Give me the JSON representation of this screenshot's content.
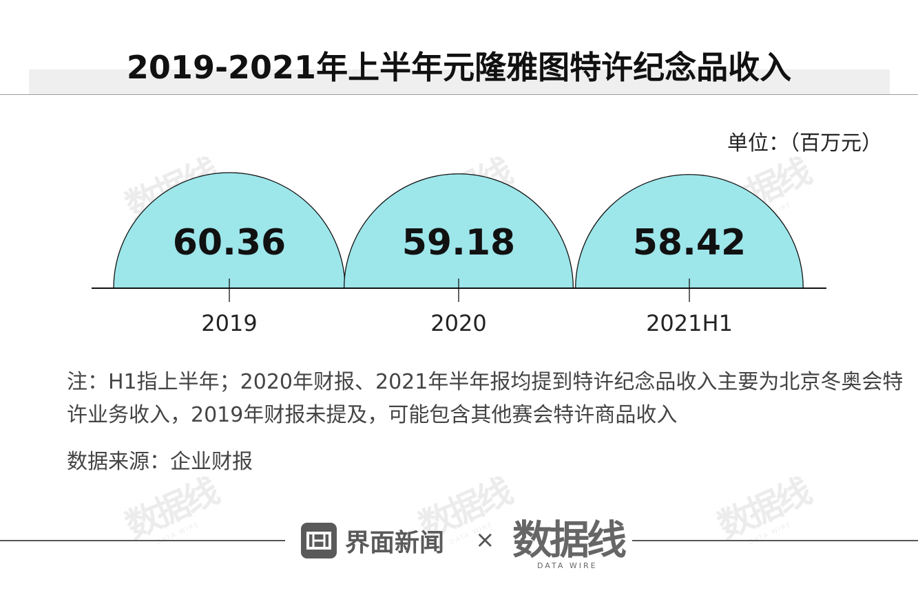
{
  "title": "2019-2021年上半年元隆雅图特许纪念品收入",
  "unit_label": "单位：（百万元）",
  "chart_data": {
    "type": "bar",
    "categories": [
      "2019",
      "2020",
      "2021H1"
    ],
    "values": [
      60.36,
      59.18,
      58.42
    ],
    "value_labels": [
      "60.36",
      "59.18",
      "58.42"
    ],
    "title": "2019-2021年上半年元隆雅图特许纪念品收入",
    "xlabel": "",
    "ylabel": "",
    "unit": "单位：（百万元）",
    "shape": "semicircle",
    "fill_color": "#9de6ea",
    "stroke_color": "#111111",
    "legend": "none",
    "grid": false
  },
  "note": "注：H1指上半年；2020年财报、2021年半年报均提到特许纪念品收入主要为北京冬奥会特许业务收入，2019年财报未提及，可能包含其他赛会特许商品收入",
  "source": "数据来源：企业财报",
  "footer": {
    "brand1": "界面新闻",
    "separator": "×",
    "brand2": "数据线",
    "brand2_sub": "DATA WIRE"
  },
  "watermark": {
    "text": "数据线",
    "sub": "DATA WIRE"
  },
  "colors": {
    "accent": "#9de6ea",
    "title_band": "#efefef",
    "text": "#222222"
  }
}
